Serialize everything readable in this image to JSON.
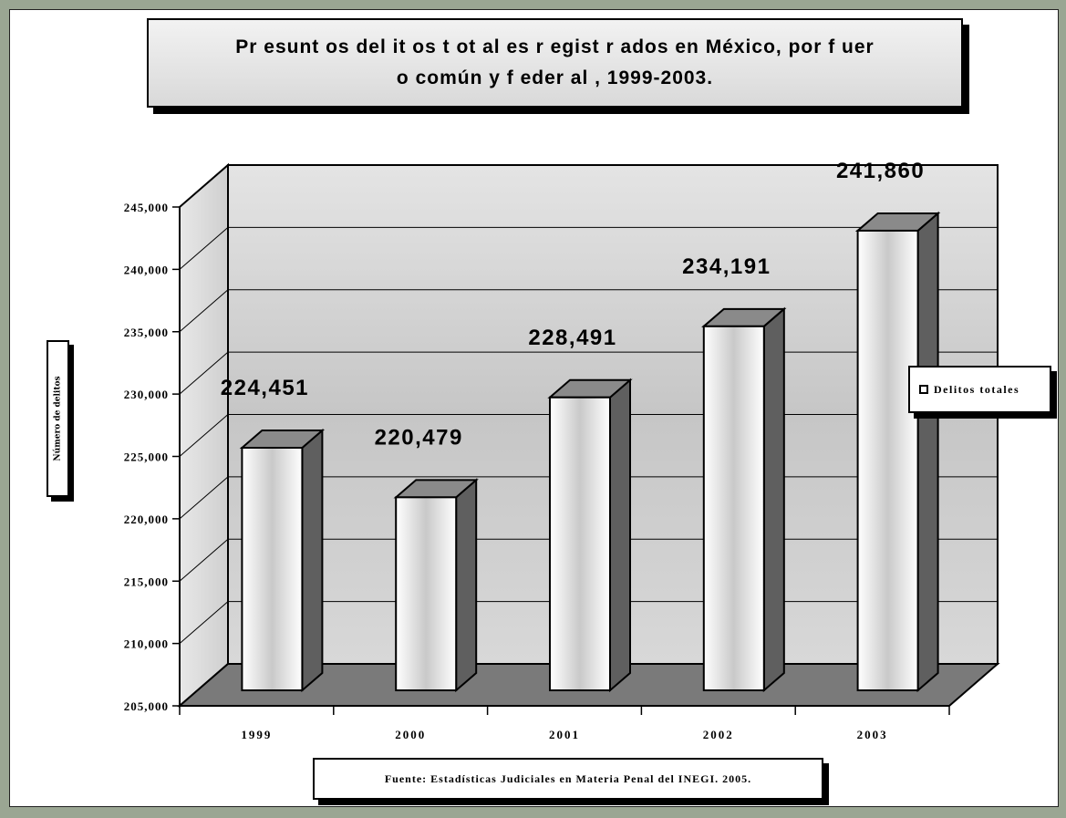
{
  "chart_data": {
    "type": "bar",
    "title": "Pr esunt os del it os t ot al es r egist r ados en México, por  f uer o común y f eder al  , 1999-2003.",
    "ylabel": "Número de delitos",
    "xlabel": "",
    "categories": [
      "1999",
      "2000",
      "2001",
      "2002",
      "2003"
    ],
    "series": [
      {
        "name": "Delitos totales",
        "values": [
          224451,
          220479,
          228491,
          234191,
          241860
        ]
      }
    ],
    "data_labels": [
      "224,451",
      "220,479",
      "228,491",
      "234,191",
      "241,860"
    ],
    "ylim": [
      205000,
      245000
    ],
    "yticks": [
      "205,000",
      "210,000",
      "215,000",
      "220,000",
      "225,000",
      "230,000",
      "235,000",
      "240,000",
      "245,000"
    ],
    "grid": true,
    "legend": "right",
    "source": "Fuente: Estadísticas Judiciales en Materia Penal del INEGI. 2005.",
    "colors": {
      "floor": "#7a7a7a",
      "bar_side": "#5f5f5f",
      "bar_top": "#8a8a8a",
      "bar_front_edge": "#ffffff",
      "bar_front_mid": "#c4c4c4",
      "wall": "#cfcfcf"
    }
  }
}
